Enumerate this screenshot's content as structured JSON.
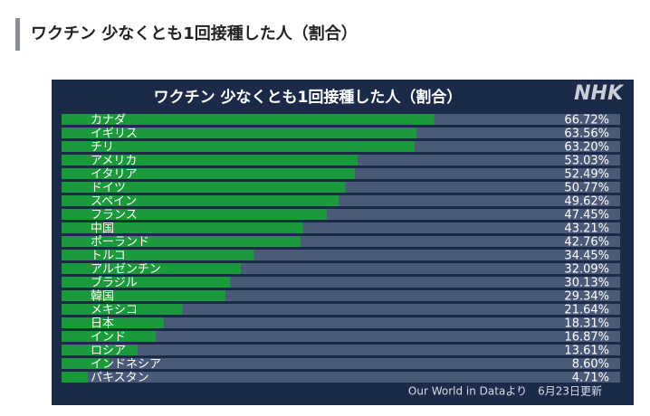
{
  "header": {
    "title": "ワクチン 少なくとも1回接種した人（割合）"
  },
  "chart_data": {
    "type": "bar",
    "orientation": "horizontal",
    "title": "ワクチン 少なくとも1回接種した人（割合）",
    "logo": "NHK",
    "source": "Our World in Dataより　6月23日更新",
    "categories": [
      "カナダ",
      "イギリス",
      "チリ",
      "アメリカ",
      "イタリア",
      "ドイツ",
      "スペイン",
      "フランス",
      "中国",
      "ポーランド",
      "トルコ",
      "アルゼンチン",
      "ブラジル",
      "韓国",
      "メキシコ",
      "日本",
      "インド",
      "ロシア",
      "インドネシア",
      "パキスタン"
    ],
    "values": [
      66.72,
      63.56,
      63.2,
      53.03,
      52.49,
      50.77,
      49.62,
      47.45,
      43.21,
      42.76,
      34.45,
      32.09,
      30.13,
      29.34,
      21.64,
      18.31,
      16.87,
      13.61,
      8.6,
      4.71
    ],
    "value_labels": [
      "66.72%",
      "63.56%",
      "63.20%",
      "53.03%",
      "52.49%",
      "50.77%",
      "49.62%",
      "47.45%",
      "43.21%",
      "42.76%",
      "34.45%",
      "32.09%",
      "30.13%",
      "29.34%",
      "21.64%",
      "18.31%",
      "16.87%",
      "13.61%",
      "8.60%",
      "4.71%"
    ],
    "xlim": [
      0,
      100
    ],
    "color": "#1a9a3a",
    "track_color": "#4a5a78",
    "background_color": "#1b2a48"
  }
}
